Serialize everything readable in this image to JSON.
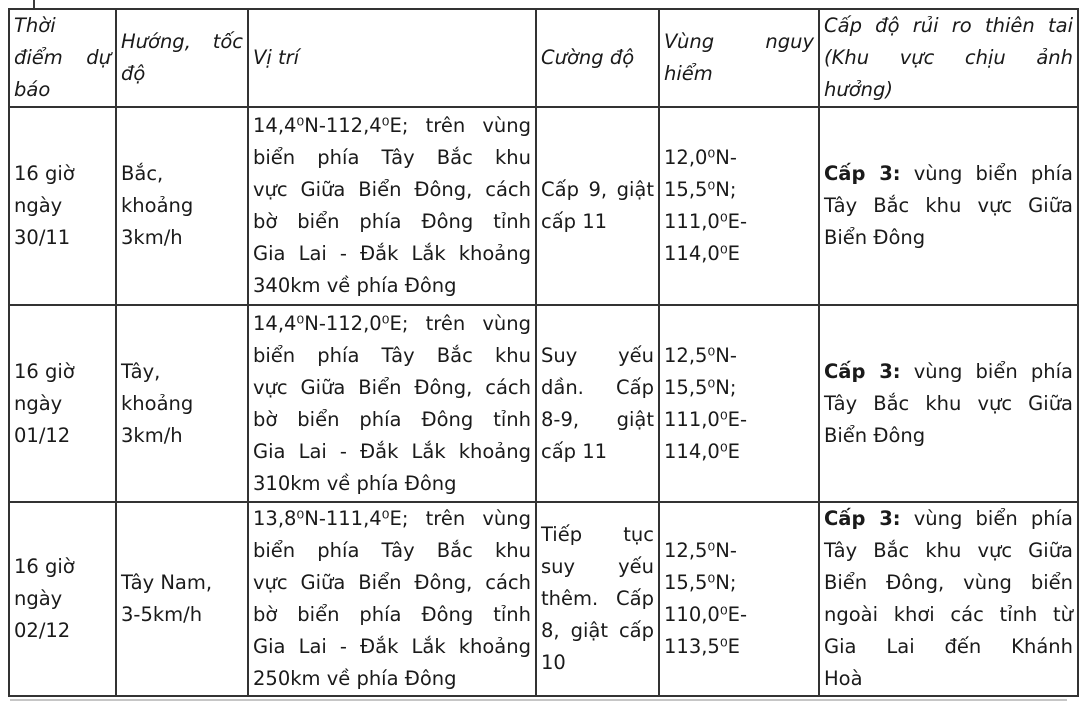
{
  "page": {
    "background": "#ffffff",
    "border_color": "#333333",
    "text_color": "#1a1a1a"
  },
  "table": {
    "columns": [
      {
        "key": "time",
        "label": "Thời\nđiểm dự\nbáo"
      },
      {
        "key": "direction",
        "label": "Hướng, tốc\nđộ"
      },
      {
        "key": "position",
        "label": "Vị trí"
      },
      {
        "key": "intensity",
        "label": "Cường độ"
      },
      {
        "key": "danger",
        "label": "Vùng nguy\nhiểm"
      },
      {
        "key": "risk",
        "label": "Cấp độ rủi ro thiên tai\n(Khu vực chịu ảnh\nhưởng)"
      }
    ],
    "rows": [
      {
        "time": "16 giờ\nngày\n30/11",
        "direction": "Bắc,\nkhoảng\n3km/h",
        "position": "14,4⁰N-112,4⁰E; trên vùng\nbiển phía Tây Bắc khu\nvực Giữa Biển Đông, cách\nbờ biển phía Đông tỉnh\nGia Lai - Đắk Lắk khoảng\n340km về phía Đông",
        "intensity": "Cấp 9, giật\ncấp 11",
        "danger": "12,0⁰N-\n15,5⁰N;\n111,0⁰E-\n114,0⁰E",
        "risk": "Cấp 3: vùng biển phía\nTây Bắc khu vực Giữa\nBiển Đông",
        "risk_bold": "Cấp 3:"
      },
      {
        "time": "16 giờ\nngày\n01/12",
        "direction": "Tây,\nkhoảng\n3km/h",
        "position": "14,4⁰N-112,0⁰E; trên vùng\nbiển phía Tây Bắc khu\nvực Giữa Biển Đông, cách\nbờ biển phía Đông tỉnh\nGia Lai - Đắk Lắk khoảng\n310km về phía Đông",
        "intensity": "Suy yếu\ndần. Cấp\n8-9, giật\ncấp 11",
        "danger": "12,5⁰N-\n15,5⁰N;\n111,0⁰E-\n114,0⁰E",
        "risk": "Cấp 3: vùng biển phía\nTây Bắc khu vực Giữa\nBiển Đông",
        "risk_bold": "Cấp 3:"
      },
      {
        "time": "16 giờ\nngày\n02/12",
        "direction": "Tây Nam,\n3-5km/h",
        "position": "13,8⁰N-111,4⁰E; trên vùng\nbiển phía Tây Bắc khu\nvực Giữa Biển Đông, cách\nbờ biển phía Đông tỉnh\nGia Lai - Đắk Lắk khoảng\n250km về phía Đông",
        "intensity": "Tiếp tục\nsuy yếu\nthêm. Cấp\n8, giật cấp\n10",
        "danger": "12,5⁰N-\n15,5⁰N;\n110,0⁰E-\n113,5⁰E",
        "risk": "Cấp 3: vùng biển phía\nTây Bắc khu vực Giữa\nBiển Đông, vùng biển\nngoài khơi các tỉnh từ\nGia Lai đến Khánh\nHoà",
        "risk_bold": "Cấp 3:"
      }
    ]
  }
}
